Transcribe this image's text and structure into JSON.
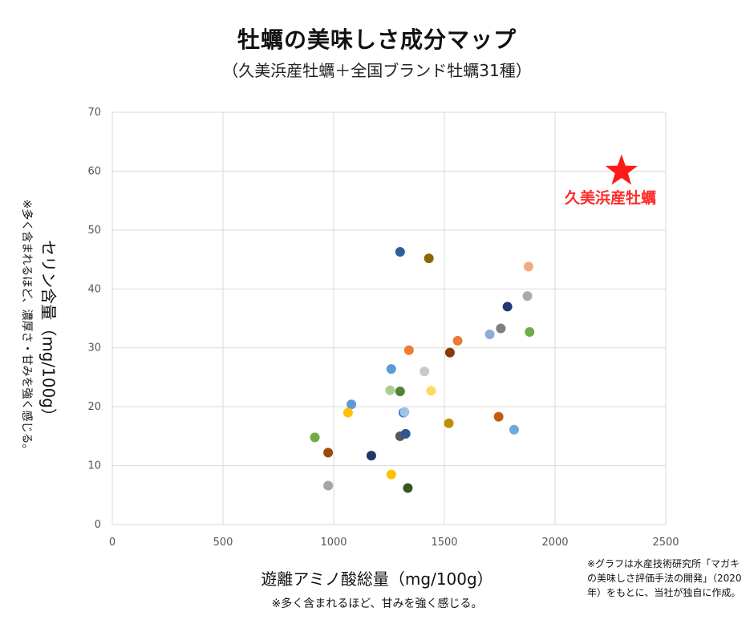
{
  "title": "牡蠣の美味しさ成分マップ",
  "subtitle": "（久美浜産牡蠣＋全国ブランド牡蠣31種）",
  "x_axis_label": "遊離アミノ酸総量（mg/100g）",
  "x_axis_note": "※多く含まれるほど、甘みを強く感じる。",
  "y_axis_label": "セリン含量（mg/100g）",
  "y_axis_note": "※多く含まれるほど、濃厚さ・甘みを強く感じる。",
  "highlight_label": "久美浜産牡蠣",
  "source_note": "※グラフは水産技術研究所「マガキの美味しさ評価手法の開発」（2020年）をもとに、当社が独自に作成。",
  "chart_data": {
    "type": "scatter",
    "title": "牡蠣の美味しさ成分マップ",
    "xlabel": "遊離アミノ酸総量（mg/100g）",
    "ylabel": "セリン含量（mg/100g）",
    "xlim": [
      0,
      2500
    ],
    "ylim": [
      0,
      70
    ],
    "x_ticks": [
      0,
      500,
      1000,
      1500,
      2000,
      2500
    ],
    "y_ticks": [
      0,
      10,
      20,
      30,
      40,
      50,
      60,
      70
    ],
    "grid": true,
    "highlight": {
      "name": "久美浜産牡蠣",
      "x": 2300,
      "y": 60,
      "color": "#ff1a1a",
      "marker": "star"
    },
    "points": [
      {
        "x": 1300,
        "y": 46.3,
        "color": "#2e5e9e"
      },
      {
        "x": 1430,
        "y": 45.2,
        "color": "#8a6a00"
      },
      {
        "x": 1880,
        "y": 43.8,
        "color": "#f0aa82"
      },
      {
        "x": 1875,
        "y": 38.8,
        "color": "#aaaaaa"
      },
      {
        "x": 1785,
        "y": 37.0,
        "color": "#1f3a73"
      },
      {
        "x": 1755,
        "y": 33.3,
        "color": "#7f7f7f"
      },
      {
        "x": 1705,
        "y": 32.3,
        "color": "#8faadc"
      },
      {
        "x": 1885,
        "y": 32.7,
        "color": "#70ad47"
      },
      {
        "x": 1560,
        "y": 31.2,
        "color": "#e97a3a"
      },
      {
        "x": 1525,
        "y": 29.2,
        "color": "#843c0c"
      },
      {
        "x": 1340,
        "y": 29.6,
        "color": "#ed7d31"
      },
      {
        "x": 1260,
        "y": 26.4,
        "color": "#5b9bd5"
      },
      {
        "x": 1410,
        "y": 26.0,
        "color": "#c9c9c9"
      },
      {
        "x": 1255,
        "y": 22.8,
        "color": "#a9d18e"
      },
      {
        "x": 1300,
        "y": 22.6,
        "color": "#548235"
      },
      {
        "x": 1440,
        "y": 22.7,
        "color": "#ffd966"
      },
      {
        "x": 1080,
        "y": 20.4,
        "color": "#5b9bd5"
      },
      {
        "x": 1065,
        "y": 19.0,
        "color": "#ffc000"
      },
      {
        "x": 1315,
        "y": 19.0,
        "color": "#2f6bb0"
      },
      {
        "x": 1320,
        "y": 19.1,
        "color": "#9dc3e6"
      },
      {
        "x": 1520,
        "y": 17.2,
        "color": "#bf9000"
      },
      {
        "x": 1745,
        "y": 18.3,
        "color": "#c55a11"
      },
      {
        "x": 1815,
        "y": 16.1,
        "color": "#6fa8dc"
      },
      {
        "x": 915,
        "y": 14.8,
        "color": "#70ad47"
      },
      {
        "x": 1300,
        "y": 15.0,
        "color": "#595959"
      },
      {
        "x": 1325,
        "y": 15.4,
        "color": "#2f5597"
      },
      {
        "x": 975,
        "y": 12.2,
        "color": "#9e480e"
      },
      {
        "x": 1170,
        "y": 11.7,
        "color": "#203864"
      },
      {
        "x": 975,
        "y": 6.6,
        "color": "#a5a5a5"
      },
      {
        "x": 1260,
        "y": 8.5,
        "color": "#ffc000"
      },
      {
        "x": 1335,
        "y": 6.2,
        "color": "#375623"
      }
    ]
  }
}
